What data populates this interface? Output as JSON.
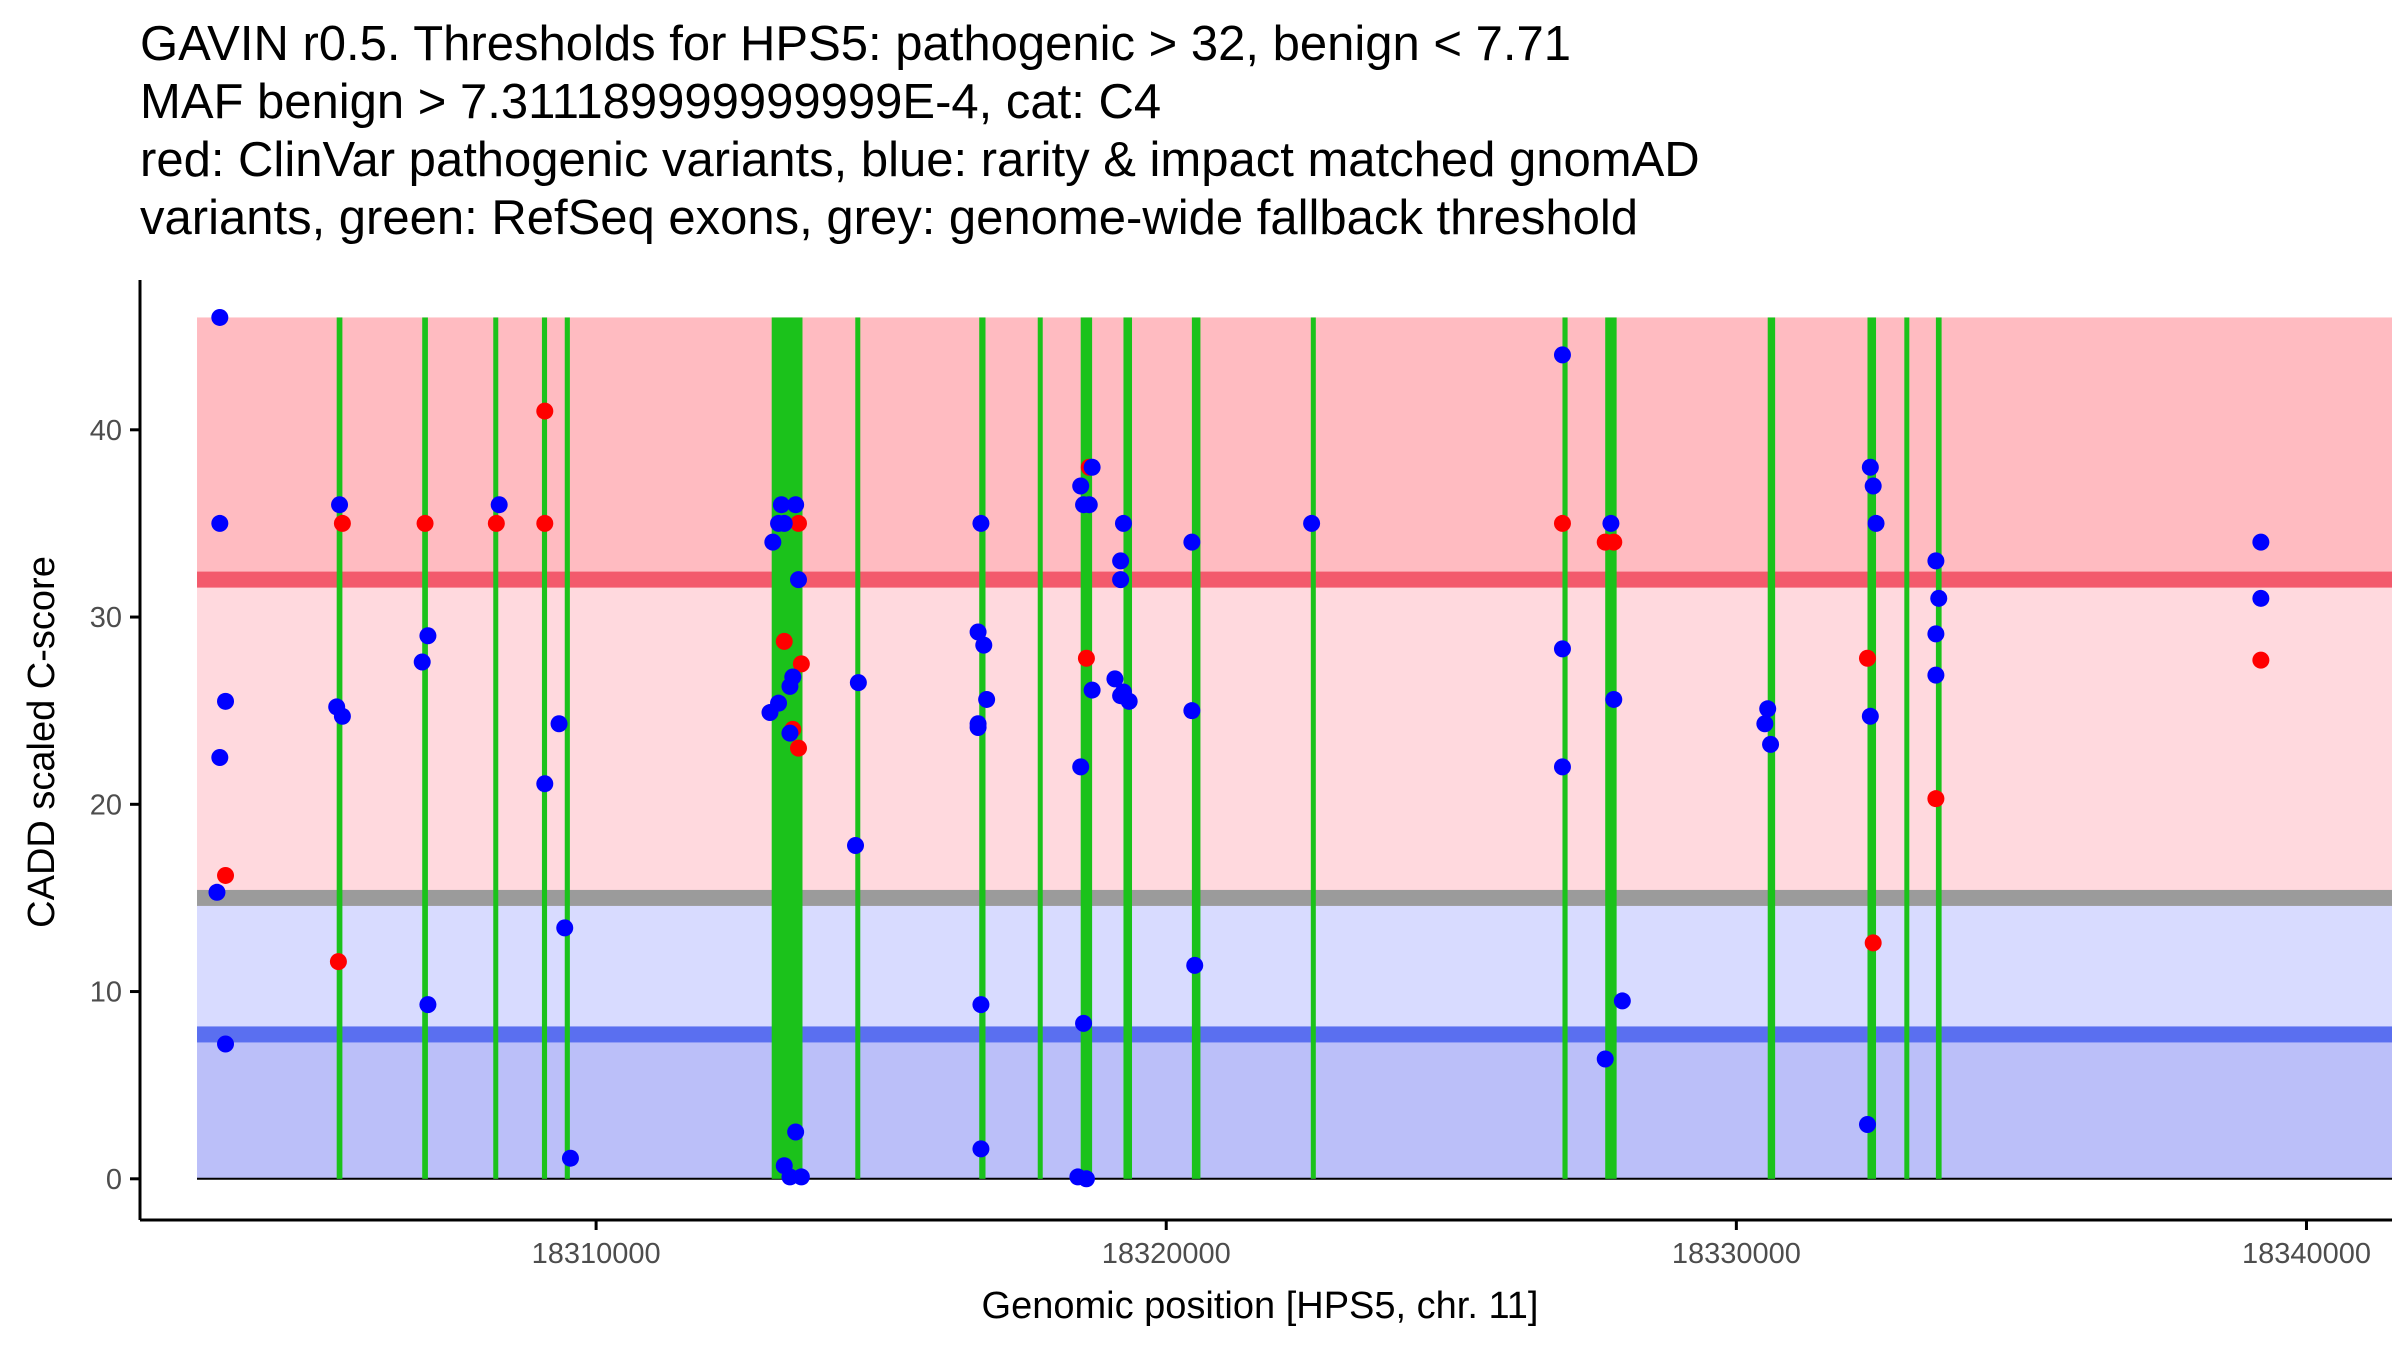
{
  "colors": {
    "pathogenic_zone": "#ffbbc1",
    "mid_pathogenic_zone": "#ffd9de",
    "mid_benign_zone": "#d8dbff",
    "benign_zone": "#bbbff9",
    "pathogenic_line": "#f35a6c",
    "fallback_line": "#9b9b9b",
    "benign_line": "#5a6ff0",
    "exon": "#1bc21b",
    "pathogenic_point": "#ff0000",
    "gnomad_point": "#0000ff",
    "axis": "#000000",
    "tick_text": "#4d4d4d"
  },
  "chart_data": {
    "type": "scatter",
    "title_lines": [
      "GAVIN r0.5. Thresholds for HPS5: pathogenic > 32, benign < 7.71",
      "MAF benign > 7.311189999999999E-4, cat: C4",
      "red: ClinVar pathogenic variants, blue: rarity & impact matched gnomAD",
      "variants, green: RefSeq exons, grey: genome-wide fallback threshold"
    ],
    "xlabel": "Genomic position [HPS5, chr. 11]",
    "ylabel": "CADD scaled C-score",
    "xlim": [
      18302000,
      18341500
    ],
    "ylim": [
      -2.2,
      48
    ],
    "x_ticks": [
      18310000,
      18320000,
      18330000,
      18340000
    ],
    "x_tick_labels": [
      "18310000",
      "18320000",
      "18330000",
      "18340000"
    ],
    "y_ticks": [
      0,
      10,
      20,
      30,
      40
    ],
    "y_tick_labels": [
      "0",
      "10",
      "20",
      "30",
      "40"
    ],
    "zones": [
      {
        "name": "pathogenic",
        "y0": 32,
        "y1": 46
      },
      {
        "name": "mid_pathogenic",
        "y0": 15,
        "y1": 32
      },
      {
        "name": "mid_benign",
        "y0": 7.71,
        "y1": 15
      },
      {
        "name": "benign",
        "y0": 0,
        "y1": 7.71
      }
    ],
    "x_range_bands": [
      18303000,
      18341500
    ],
    "thresholds": {
      "pathogenic": 32,
      "fallback": 15,
      "benign": 7.71
    },
    "exons": [
      [
        18305450,
        18305550
      ],
      [
        18306950,
        18307050
      ],
      [
        18308200,
        18308280
      ],
      [
        18309050,
        18309140
      ],
      [
        18309450,
        18309540
      ],
      [
        18313080,
        18313620
      ],
      [
        18314550,
        18314630
      ],
      [
        18316720,
        18316830
      ],
      [
        18317750,
        18317830
      ],
      [
        18318500,
        18318700
      ],
      [
        18319250,
        18319400
      ],
      [
        18320450,
        18320600
      ],
      [
        18322550,
        18322610
      ],
      [
        18326950,
        18327040
      ],
      [
        18327700,
        18327900
      ],
      [
        18330550,
        18330680
      ],
      [
        18332300,
        18332450
      ],
      [
        18332950,
        18333030
      ],
      [
        18333500,
        18333600
      ]
    ],
    "series": [
      {
        "name": "ClinVar pathogenic variants",
        "color": "#ff0000",
        "points": [
          [
            18303500,
            16.2
          ],
          [
            18305550,
            35
          ],
          [
            18305480,
            11.6
          ],
          [
            18307000,
            35
          ],
          [
            18308250,
            35
          ],
          [
            18309100,
            41
          ],
          [
            18309100,
            35
          ],
          [
            18313300,
            28.7
          ],
          [
            18313550,
            35
          ],
          [
            18313450,
            24
          ],
          [
            18313600,
            27.5
          ],
          [
            18313550,
            23
          ],
          [
            18318650,
            38
          ],
          [
            18318600,
            27.8
          ],
          [
            18326950,
            35
          ],
          [
            18327700,
            34
          ],
          [
            18327850,
            34
          ],
          [
            18332300,
            27.8
          ],
          [
            18332400,
            12.6
          ],
          [
            18333500,
            20.3
          ],
          [
            18339200,
            27.7
          ]
        ]
      },
      {
        "name": "gnomAD matched variants",
        "color": "#0000ff",
        "points": [
          [
            18303400,
            46
          ],
          [
            18303400,
            35
          ],
          [
            18303500,
            25.5
          ],
          [
            18303400,
            22.5
          ],
          [
            18303350,
            15.3
          ],
          [
            18303500,
            7.2
          ],
          [
            18305500,
            36
          ],
          [
            18305450,
            25.2
          ],
          [
            18305550,
            24.7
          ],
          [
            18306950,
            27.6
          ],
          [
            18307050,
            29
          ],
          [
            18307050,
            9.3
          ],
          [
            18308300,
            36
          ],
          [
            18309100,
            21.1
          ],
          [
            18309350,
            24.3
          ],
          [
            18309450,
            13.4
          ],
          [
            18309550,
            1.1
          ],
          [
            18313100,
            34
          ],
          [
            18313200,
            35
          ],
          [
            18313250,
            36
          ],
          [
            18313500,
            36
          ],
          [
            18313400,
            26.3
          ],
          [
            18313450,
            26.8
          ],
          [
            18313300,
            35
          ],
          [
            18313550,
            32
          ],
          [
            18313050,
            24.9
          ],
          [
            18313200,
            25.4
          ],
          [
            18313400,
            23.8
          ],
          [
            18313300,
            0.7
          ],
          [
            18313400,
            0.1
          ],
          [
            18313500,
            2.5
          ],
          [
            18313600,
            0.1
          ],
          [
            18314600,
            26.5
          ],
          [
            18314550,
            17.8
          ],
          [
            18316750,
            35
          ],
          [
            18316700,
            29.2
          ],
          [
            18316800,
            28.5
          ],
          [
            18316700,
            24.3
          ],
          [
            18316700,
            24.1
          ],
          [
            18316850,
            25.6
          ],
          [
            18316750,
            9.3
          ],
          [
            18316750,
            1.6
          ],
          [
            18318500,
            37
          ],
          [
            18318550,
            36
          ],
          [
            18318700,
            38
          ],
          [
            18318650,
            36
          ],
          [
            18318500,
            22
          ],
          [
            18318700,
            26.1
          ],
          [
            18318550,
            8.3
          ],
          [
            18318450,
            0.1
          ],
          [
            18318600,
            0
          ],
          [
            18319250,
            35
          ],
          [
            18319200,
            33
          ],
          [
            18319200,
            32
          ],
          [
            18319100,
            26.7
          ],
          [
            18319250,
            26
          ],
          [
            18319200,
            25.8
          ],
          [
            18319350,
            25.5
          ],
          [
            18320450,
            34
          ],
          [
            18320450,
            25
          ],
          [
            18320500,
            11.4
          ],
          [
            18322550,
            35
          ],
          [
            18326950,
            44
          ],
          [
            18326950,
            28.3
          ],
          [
            18326950,
            22
          ],
          [
            18327800,
            35
          ],
          [
            18327850,
            25.6
          ],
          [
            18327700,
            6.4
          ],
          [
            18328000,
            9.5
          ],
          [
            18330500,
            24.3
          ],
          [
            18330550,
            25.1
          ],
          [
            18330600,
            23.2
          ],
          [
            18332350,
            38
          ],
          [
            18332400,
            37
          ],
          [
            18332450,
            35
          ],
          [
            18332350,
            24.7
          ],
          [
            18332300,
            2.9
          ],
          [
            18333500,
            33
          ],
          [
            18333550,
            31
          ],
          [
            18333500,
            29.1
          ],
          [
            18333500,
            26.9
          ],
          [
            18339200,
            34
          ],
          [
            18339200,
            31
          ]
        ]
      }
    ]
  }
}
